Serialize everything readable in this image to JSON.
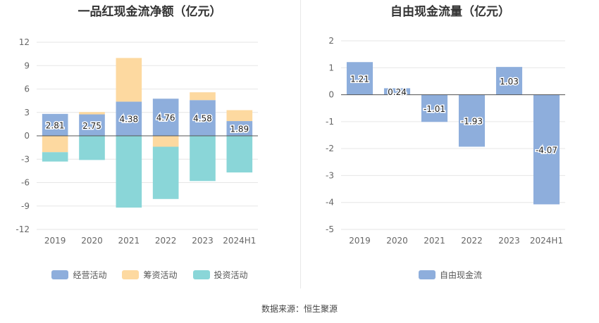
{
  "chart_data": [
    {
      "type": "bar",
      "title": "一品红现金流净额（亿元）",
      "categories": [
        "2019",
        "2020",
        "2021",
        "2022",
        "2023",
        "2024H1"
      ],
      "ylim": [
        -12,
        12
      ],
      "yticks": [
        12,
        9,
        6,
        3,
        0,
        -3,
        -6,
        -9,
        -12
      ],
      "series": [
        {
          "name": "经营活动",
          "color": "#8eaedc",
          "values": [
            2.81,
            2.75,
            4.38,
            4.76,
            4.58,
            1.89
          ]
        },
        {
          "name": "筹资活动",
          "color": "#fdd9a0",
          "values": [
            -2.1,
            0.3,
            5.6,
            -1.4,
            1.0,
            1.4
          ]
        },
        {
          "name": "投资活动",
          "color": "#8ad6d8",
          "values": [
            -1.2,
            -3.1,
            -9.2,
            -6.7,
            -5.8,
            -4.7
          ]
        }
      ],
      "data_labels": [
        "2.81",
        "2.75",
        "4.38",
        "4.76",
        "4.58",
        "1.89"
      ],
      "legend_position": "bottom",
      "grid": true
    },
    {
      "type": "bar",
      "title": "自由现金流量（亿元）",
      "categories": [
        "2019",
        "2020",
        "2021",
        "2022",
        "2023",
        "2024H1"
      ],
      "ylim": [
        -5,
        2
      ],
      "yticks": [
        2,
        1,
        0,
        -1,
        -2,
        -3,
        -4,
        -5
      ],
      "series": [
        {
          "name": "自由现金流",
          "color": "#8eaedc",
          "values": [
            1.21,
            0.24,
            -1.01,
            -1.93,
            1.03,
            -4.07
          ]
        }
      ],
      "data_labels": [
        "1.21",
        "0.24",
        "-1.01",
        "-1.93",
        "1.03",
        "-4.07"
      ],
      "legend_position": "bottom",
      "grid": true
    }
  ],
  "source": "数据来源：恒生聚源"
}
